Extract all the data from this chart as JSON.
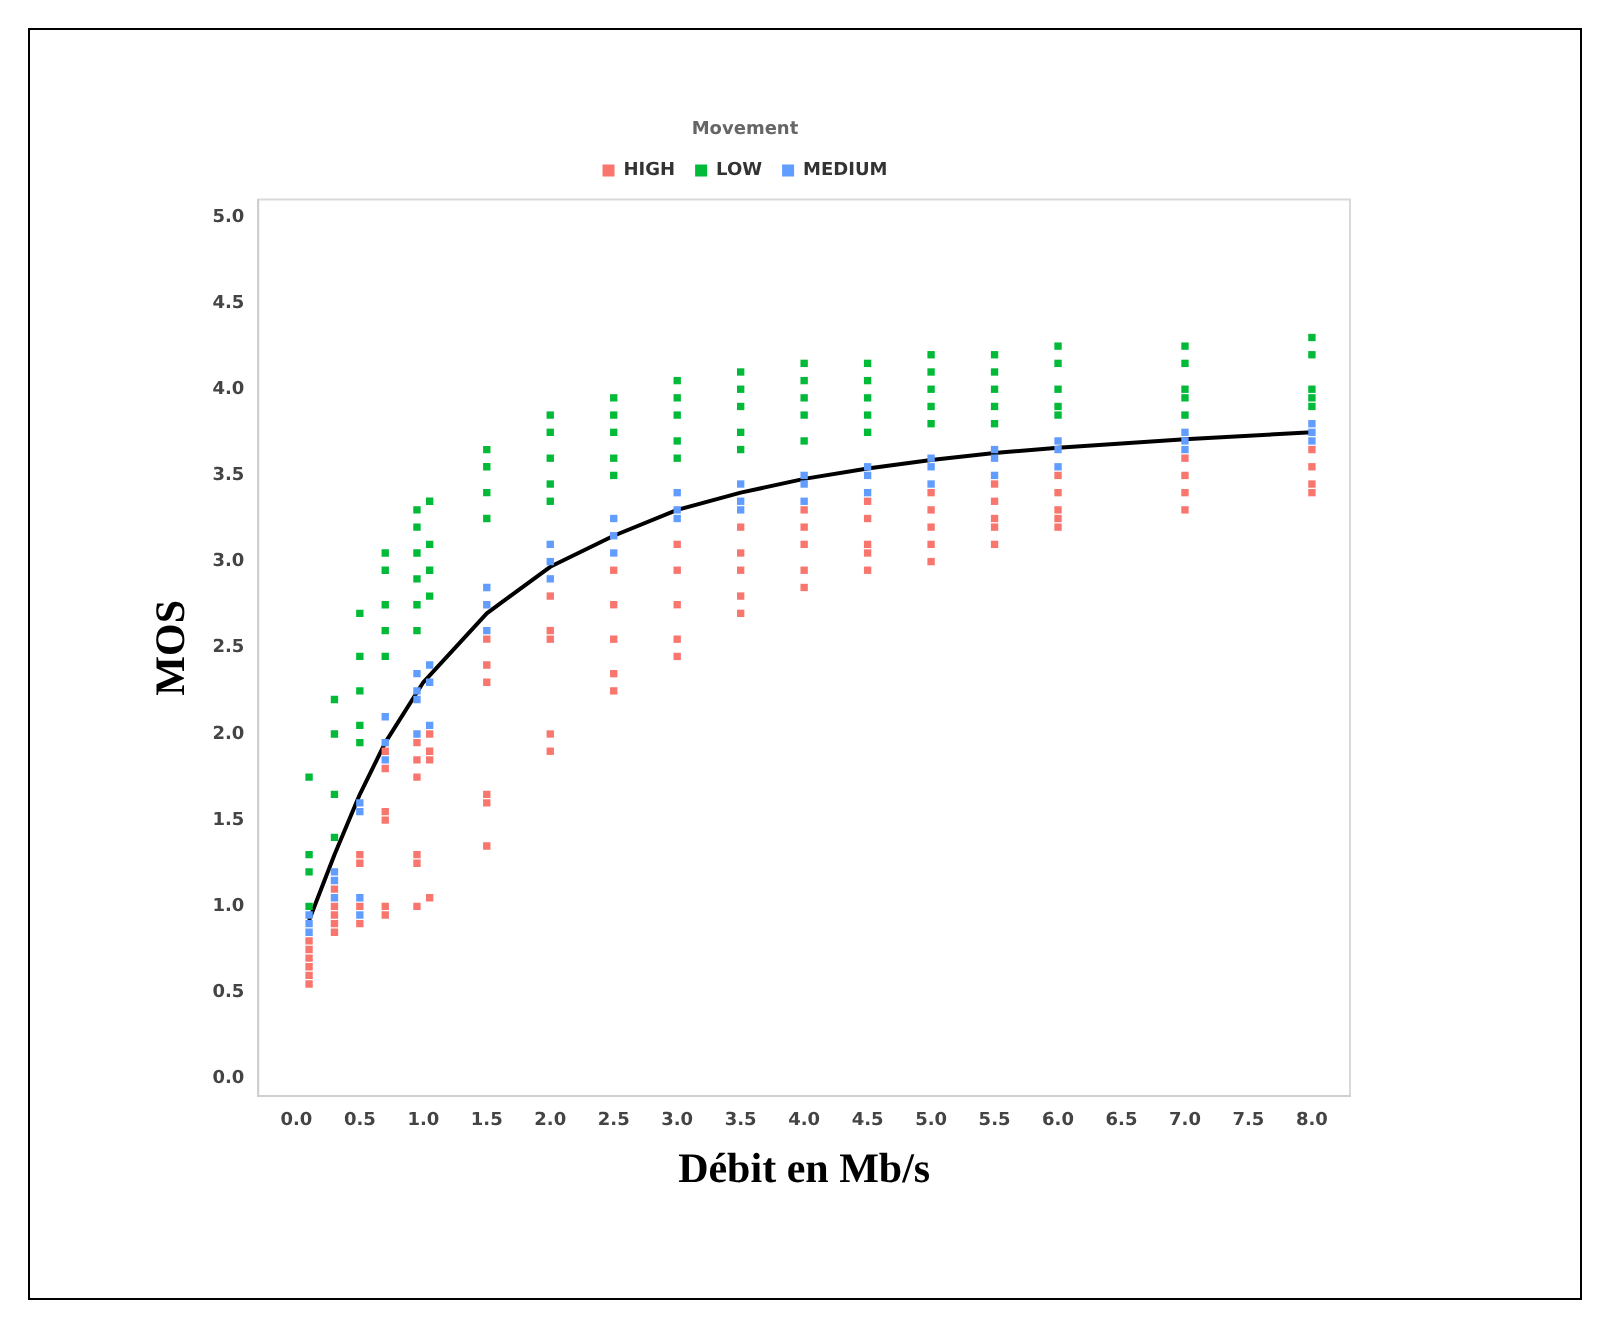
{
  "chart_data": {
    "type": "scatter",
    "xlabel": "Débit en Mb/s",
    "ylabel": "MOS",
    "legend_title": "Movement",
    "legend": "top",
    "grid": false,
    "marker": "square",
    "xlim": [
      -0.3,
      8.3
    ],
    "ylim": [
      -0.1,
      5.1
    ],
    "xticks": [
      {
        "value": 0,
        "label": "0.0"
      },
      {
        "value": 0.5,
        "label": "0.5"
      },
      {
        "value": 1,
        "label": "1.0"
      },
      {
        "value": 1.5,
        "label": "1.5"
      },
      {
        "value": 2,
        "label": "2.0"
      },
      {
        "value": 2.5,
        "label": "2.5"
      },
      {
        "value": 3,
        "label": "3.0"
      },
      {
        "value": 3.5,
        "label": "3.5"
      },
      {
        "value": 4,
        "label": "4.0"
      },
      {
        "value": 4.5,
        "label": "4.5"
      },
      {
        "value": 5,
        "label": "5.0"
      },
      {
        "value": 5.5,
        "label": "5.5"
      },
      {
        "value": 6,
        "label": "6.0"
      },
      {
        "value": 6.5,
        "label": "6.5"
      },
      {
        "value": 7,
        "label": "7.0"
      },
      {
        "value": 7.5,
        "label": "7.5"
      },
      {
        "value": 8,
        "label": "8.0"
      }
    ],
    "yticks": [
      {
        "value": 0,
        "label": "0.0"
      },
      {
        "value": 0.5,
        "label": "0.5"
      },
      {
        "value": 1,
        "label": "1.0"
      },
      {
        "value": 1.5,
        "label": "1.5"
      },
      {
        "value": 2,
        "label": "2.0"
      },
      {
        "value": 2.5,
        "label": "2.5"
      },
      {
        "value": 3,
        "label": "3.0"
      },
      {
        "value": 3.5,
        "label": "3.5"
      },
      {
        "value": 4,
        "label": "4.0"
      },
      {
        "value": 4.5,
        "label": "4.5"
      },
      {
        "value": 5,
        "label": "5.0"
      }
    ],
    "series": [
      {
        "name": "HIGH",
        "color": "#f8766d",
        "x": [
          0.1,
          0.1,
          0.1,
          0.1,
          0.1,
          0.1,
          0.3,
          0.3,
          0.3,
          0.3,
          0.3,
          0.5,
          0.5,
          0.5,
          0.5,
          0.7,
          0.7,
          0.7,
          0.7,
          0.7,
          0.7,
          0.95,
          0.95,
          0.95,
          0.95,
          0.95,
          0.95,
          1.05,
          1.05,
          1.05,
          1.05,
          1.5,
          1.5,
          1.5,
          1.5,
          1.5,
          1.5,
          2,
          2,
          2,
          2,
          2,
          2.5,
          2.5,
          2.5,
          2.5,
          2.5,
          3,
          3,
          3,
          3,
          3,
          3.5,
          3.5,
          3.5,
          3.5,
          3.5,
          4,
          4,
          4,
          4,
          4,
          4.5,
          4.5,
          4.5,
          4.5,
          4.5,
          5,
          5,
          5,
          5,
          5,
          5.5,
          5.5,
          5.5,
          5.5,
          5.5,
          6,
          6,
          6,
          6,
          6,
          7,
          7,
          7,
          7,
          8,
          8,
          8,
          8
        ],
        "values": [
          0.8,
          0.75,
          0.7,
          0.65,
          0.6,
          0.55,
          1.1,
          1.0,
          0.95,
          0.9,
          0.85,
          1.3,
          1.25,
          1.0,
          0.9,
          1.9,
          1.8,
          1.55,
          1.5,
          1.0,
          0.95,
          1.95,
          1.85,
          1.75,
          1.3,
          1.25,
          1.0,
          2.0,
          1.9,
          1.85,
          1.05,
          2.55,
          2.4,
          2.3,
          1.65,
          1.6,
          1.35,
          2.8,
          2.6,
          2.55,
          2.0,
          1.9,
          2.95,
          2.75,
          2.55,
          2.35,
          2.25,
          3.1,
          2.95,
          2.75,
          2.55,
          2.45,
          3.2,
          3.05,
          2.95,
          2.8,
          2.7,
          3.3,
          3.2,
          3.1,
          2.95,
          2.85,
          3.35,
          3.25,
          3.1,
          3.05,
          2.95,
          3.4,
          3.3,
          3.2,
          3.1,
          3.0,
          3.45,
          3.35,
          3.25,
          3.2,
          3.1,
          3.5,
          3.4,
          3.3,
          3.25,
          3.2,
          3.6,
          3.5,
          3.4,
          3.3,
          3.65,
          3.55,
          3.45,
          3.4
        ]
      },
      {
        "name": "LOW",
        "color": "#00ba38",
        "x": [
          0.1,
          0.1,
          0.1,
          0.1,
          0.3,
          0.3,
          0.3,
          0.3,
          0.5,
          0.5,
          0.5,
          0.5,
          0.5,
          0.7,
          0.7,
          0.7,
          0.7,
          0.7,
          0.95,
          0.95,
          0.95,
          0.95,
          0.95,
          0.95,
          1.05,
          1.05,
          1.05,
          1.05,
          1.5,
          1.5,
          1.5,
          1.5,
          2,
          2,
          2,
          2,
          2,
          2.5,
          2.5,
          2.5,
          2.5,
          2.5,
          3,
          3,
          3,
          3,
          3,
          3.5,
          3.5,
          3.5,
          3.5,
          3.5,
          4,
          4,
          4,
          4,
          4,
          4.5,
          4.5,
          4.5,
          4.5,
          4.5,
          5,
          5,
          5,
          5,
          5,
          5.5,
          5.5,
          5.5,
          5.5,
          5.5,
          6,
          6,
          6,
          6,
          6,
          7,
          7,
          7,
          7,
          7,
          8,
          8,
          8,
          8,
          8
        ],
        "values": [
          1.75,
          1.3,
          1.2,
          1.0,
          2.2,
          2.0,
          1.65,
          1.4,
          2.7,
          2.45,
          2.25,
          2.05,
          1.95,
          3.05,
          2.95,
          2.75,
          2.6,
          2.45,
          3.3,
          3.2,
          3.05,
          2.9,
          2.75,
          2.6,
          3.35,
          3.1,
          2.95,
          2.8,
          3.65,
          3.55,
          3.4,
          3.25,
          3.85,
          3.75,
          3.6,
          3.45,
          3.35,
          3.95,
          3.85,
          3.75,
          3.6,
          3.5,
          4.05,
          3.95,
          3.85,
          3.7,
          3.6,
          4.1,
          4.0,
          3.9,
          3.75,
          3.65,
          4.15,
          4.05,
          3.95,
          3.85,
          3.7,
          4.15,
          4.05,
          3.95,
          3.85,
          3.75,
          4.2,
          4.1,
          4.0,
          3.9,
          3.8,
          4.2,
          4.1,
          4.0,
          3.9,
          3.8,
          4.25,
          4.15,
          4.0,
          3.9,
          3.85,
          4.25,
          4.15,
          4.0,
          3.95,
          3.85,
          4.3,
          4.2,
          4.0,
          3.95,
          3.9
        ]
      },
      {
        "name": "MEDIUM",
        "color": "#619cff",
        "x": [
          0.1,
          0.1,
          0.1,
          0.3,
          0.3,
          0.3,
          0.5,
          0.5,
          0.5,
          0.5,
          0.7,
          0.7,
          0.7,
          0.95,
          0.95,
          0.95,
          0.95,
          1.05,
          1.05,
          1.05,
          1.5,
          1.5,
          1.5,
          2,
          2,
          2,
          2.5,
          2.5,
          2.5,
          3,
          3,
          3,
          3.5,
          3.5,
          3.5,
          4,
          4,
          4,
          4.5,
          4.5,
          4.5,
          5,
          5,
          5,
          5.5,
          5.5,
          5.5,
          6,
          6,
          6,
          7,
          7,
          7,
          8,
          8,
          8
        ],
        "values": [
          0.95,
          0.9,
          0.85,
          1.2,
          1.15,
          1.05,
          1.6,
          1.55,
          1.05,
          0.95,
          2.1,
          1.95,
          1.85,
          2.35,
          2.25,
          2.2,
          2.0,
          2.4,
          2.3,
          2.05,
          2.85,
          2.75,
          2.6,
          3.1,
          3.0,
          2.9,
          3.25,
          3.15,
          3.05,
          3.4,
          3.3,
          3.25,
          3.45,
          3.35,
          3.3,
          3.5,
          3.45,
          3.35,
          3.55,
          3.5,
          3.4,
          3.6,
          3.55,
          3.45,
          3.65,
          3.6,
          3.5,
          3.7,
          3.65,
          3.55,
          3.75,
          3.7,
          3.65,
          3.8,
          3.75,
          3.7
        ]
      },
      {
        "type": "line",
        "color": "#000000",
        "marker": "none",
        "x": [
          0.1,
          0.3,
          0.5,
          0.7,
          1.0,
          1.5,
          2,
          2.5,
          3,
          3.5,
          4,
          4.5,
          5,
          5.5,
          6,
          7,
          8
        ],
        "values": [
          0.92,
          1.3,
          1.65,
          1.95,
          2.3,
          2.7,
          2.97,
          3.15,
          3.3,
          3.4,
          3.48,
          3.54,
          3.59,
          3.63,
          3.66,
          3.71,
          3.75
        ]
      }
    ]
  }
}
